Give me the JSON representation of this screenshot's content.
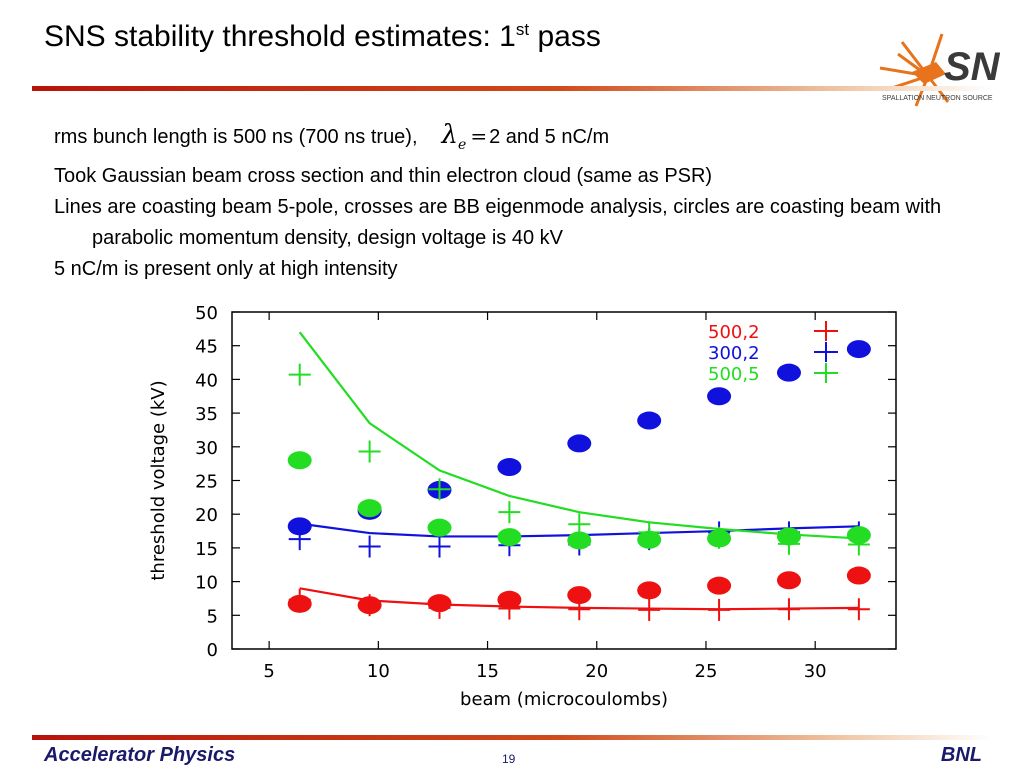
{
  "slide": {
    "title_main": "SNS stability threshold estimates: 1",
    "title_sup": "st",
    "title_end": " pass",
    "logo_text": "SNS",
    "logo_subtext": "SPALLATION NEUTRON SOURCE",
    "bullets": [
      {
        "text_before": "rms bunch length is 500 ns (700 ns true),",
        "symbol": "λ",
        "symbol_sub": "e",
        "eq": "=",
        "text_after": "2 and 5 nC/m"
      },
      {
        "text": "Took Gaussian beam cross section and thin electron cloud (same as PSR)"
      },
      {
        "text": "Lines are coasting beam 5-pole, crosses are BB eigenmode analysis, circles are coasting beam with parabolic momentum density, design voltage is 40 kV"
      },
      {
        "text": "5 nC/m is present only at high intensity"
      }
    ],
    "footer_left": "Accelerator Physics",
    "footer_page": "19",
    "footer_right": "BNL"
  },
  "colors": {
    "red": "#ee1111",
    "blue": "#1111dd",
    "green": "#22dd22"
  },
  "chart_data": {
    "type": "scatter",
    "xlabel": "beam (microcoulombs)",
    "ylabel": "threshold voltage (kV)",
    "xlim": [
      3.3,
      33.7
    ],
    "ylim": [
      0,
      50
    ],
    "xticks": [
      5,
      10,
      15,
      20,
      25,
      30
    ],
    "yticks": [
      0,
      5,
      10,
      15,
      20,
      25,
      30,
      35,
      40,
      45,
      50
    ],
    "grid": false,
    "legend_position": "top-right",
    "x": [
      6.4,
      9.6,
      12.8,
      16.0,
      19.2,
      22.4,
      25.6,
      28.8,
      32.0
    ],
    "series": [
      {
        "name": "500,2",
        "color": "#ee1111",
        "line": [
          9.0,
          7.2,
          6.6,
          6.3,
          6.1,
          6.0,
          5.9,
          6.0,
          6.1
        ],
        "crosses": [
          7.3,
          6.5,
          6.1,
          6.0,
          5.9,
          5.8,
          5.8,
          5.9,
          5.9
        ],
        "circles": [
          6.7,
          6.5,
          6.8,
          7.3,
          8.0,
          8.7,
          9.4,
          10.2,
          10.9
        ]
      },
      {
        "name": "300,2",
        "color": "#1111dd",
        "line": [
          18.6,
          17.2,
          16.7,
          16.7,
          16.9,
          17.2,
          17.5,
          17.9,
          18.2
        ],
        "crosses": [
          16.3,
          15.2,
          15.2,
          15.4,
          15.5,
          16.3,
          17.3,
          17.3,
          17.3
        ],
        "circles": [
          18.2,
          20.5,
          23.6,
          27.0,
          30.5,
          33.9,
          37.5,
          41.0,
          44.5
        ]
      },
      {
        "name": "500,5",
        "color": "#22dd22",
        "line": [
          47.0,
          33.5,
          26.5,
          22.7,
          20.3,
          18.8,
          17.8,
          17.0,
          16.4
        ],
        "crosses": [
          40.7,
          29.3,
          23.7,
          20.3,
          18.5,
          17.3,
          16.5,
          15.6,
          15.5
        ],
        "circles": [
          28.0,
          20.9,
          18.0,
          16.6,
          16.1,
          16.2,
          16.4,
          16.7,
          16.9
        ]
      }
    ]
  }
}
